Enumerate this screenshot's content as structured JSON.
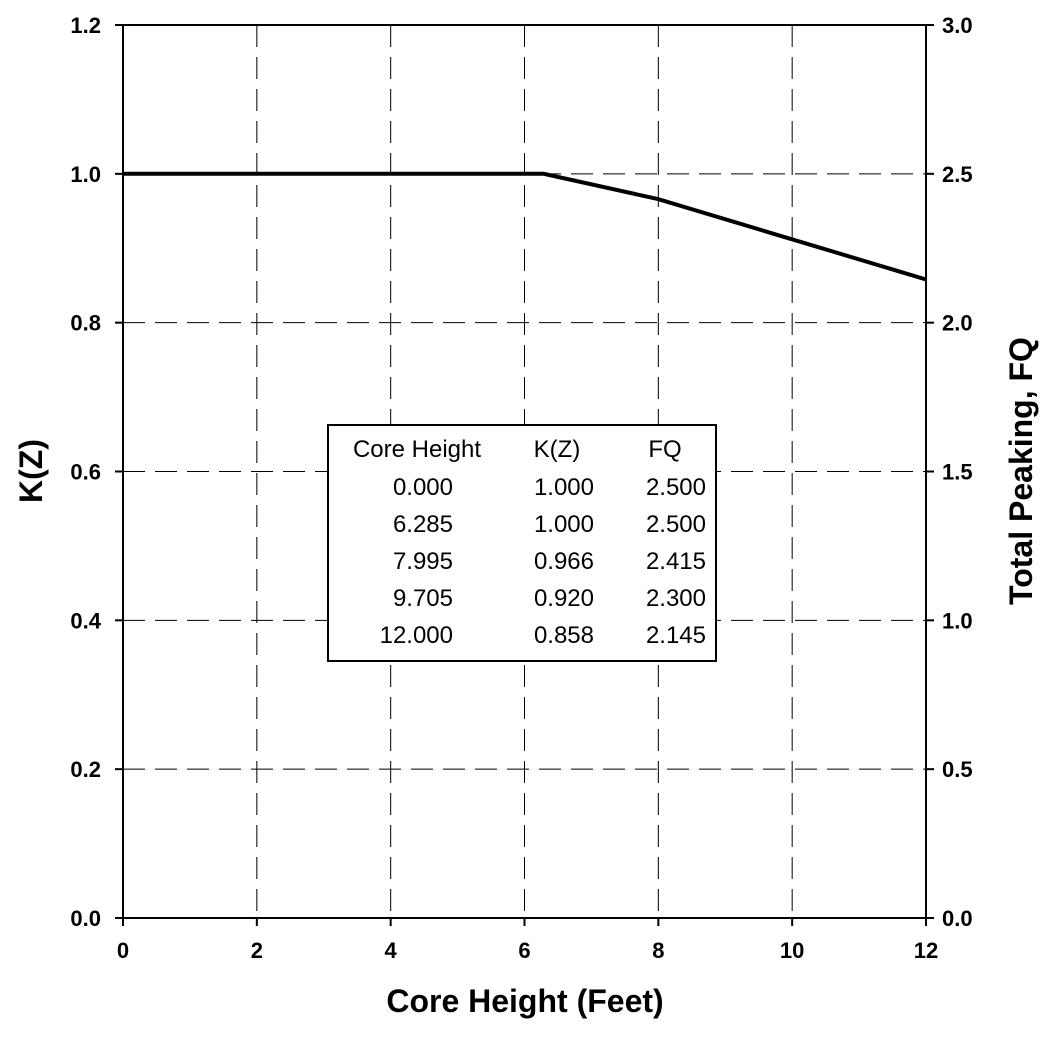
{
  "chart_data": {
    "type": "line",
    "title": "",
    "xlabel": "Core Height (Feet)",
    "ylabel": "K(Z)",
    "y2label": "Total Peaking, FQ",
    "xlim": [
      0,
      12
    ],
    "ylim": [
      0,
      1.2
    ],
    "y2lim": [
      0,
      3.0
    ],
    "x_ticks": [
      "0",
      "2",
      "4",
      "6",
      "8",
      "10",
      "12"
    ],
    "y_ticks": [
      "0.0",
      "0.2",
      "0.4",
      "0.6",
      "0.8",
      "1.0",
      "1.2"
    ],
    "y2_ticks": [
      "0.0",
      "0.5",
      "1.0",
      "1.5",
      "2.0",
      "2.5",
      "3.0"
    ],
    "grid": true,
    "series": [
      {
        "x": [
          0.0,
          6.285,
          7.995,
          9.705,
          12.0
        ],
        "y": [
          1.0,
          1.0,
          0.966,
          0.92,
          0.858
        ]
      }
    ],
    "inset_table": {
      "headers": [
        "Core Height",
        "K(Z)",
        "FQ"
      ],
      "rows": [
        [
          "0.000",
          "1.000",
          "2.500"
        ],
        [
          "6.285",
          "1.000",
          "2.500"
        ],
        [
          "7.995",
          "0.966",
          "2.415"
        ],
        [
          "9.705",
          "0.920",
          "2.300"
        ],
        [
          "12.000",
          "0.858",
          "2.145"
        ]
      ]
    },
    "colors": {
      "line": "#000000",
      "grid": "#000000",
      "background": "#ffffff"
    }
  }
}
